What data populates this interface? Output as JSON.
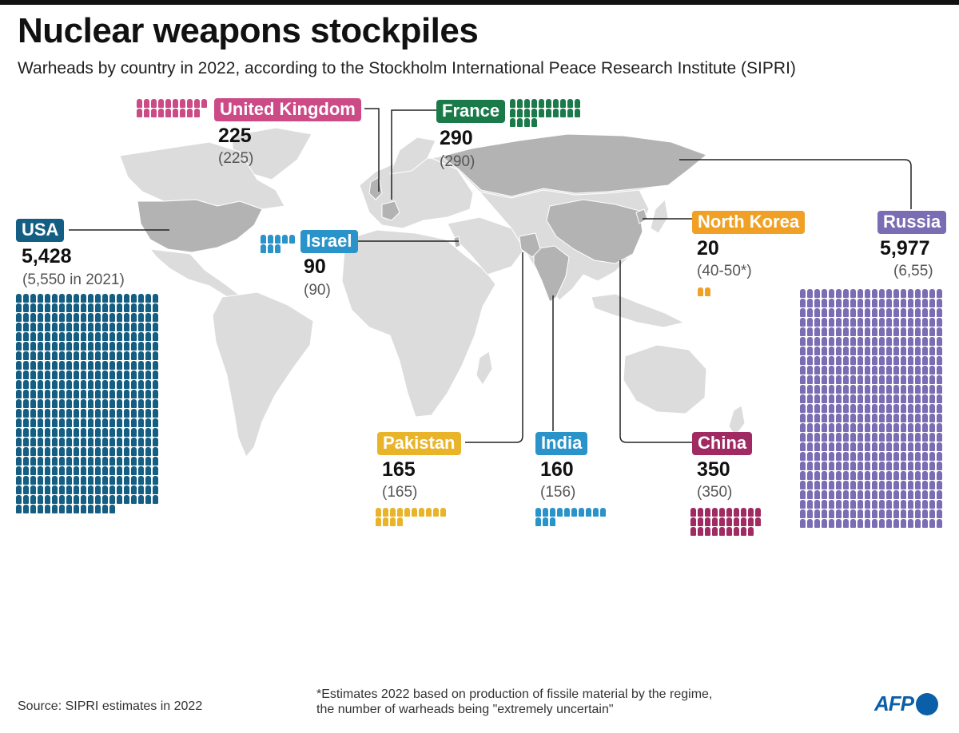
{
  "header": {
    "title": "Nuclear weapons stockpiles",
    "subtitle": "Warheads by country in 2022, according to the Stockholm International Peace Research Institute (SIPRI)"
  },
  "chart_data": {
    "type": "pictogram-map",
    "title": "Nuclear weapons stockpiles",
    "subtitle": "Warheads by country in 2022, according to the Stockholm International Peace Research Institute (SIPRI)",
    "unit": "warheads",
    "countries": [
      {
        "key": "uk",
        "name": "United Kingdom",
        "value": 225,
        "value_label": "225",
        "previous_label": "(225)",
        "color": "#cc4a86",
        "icons": 19
      },
      {
        "key": "france",
        "name": "France",
        "value": 290,
        "value_label": "290",
        "previous_label": "(290)",
        "color": "#1b7a4a",
        "icons": 24
      },
      {
        "key": "usa",
        "name": "USA",
        "value": 5428,
        "value_label": "5,428",
        "previous_label": "(5,550 in 2021)",
        "color": "#135e82",
        "icons": 454
      },
      {
        "key": "israel",
        "name": "Israel",
        "value": 90,
        "value_label": "90",
        "previous_label": "(90)",
        "color": "#2a93c9",
        "icons": 8
      },
      {
        "key": "north_korea",
        "name": "North Korea",
        "value": 20,
        "value_label": "20",
        "previous_label": "(40-50*)",
        "color": "#f0a024",
        "icons": 2
      },
      {
        "key": "russia",
        "name": "Russia",
        "value": 5977,
        "value_label": "5,977",
        "previous_label": "(6,55)",
        "color": "#7b6db3",
        "icons": 500
      },
      {
        "key": "pakistan",
        "name": "Pakistan",
        "value": 165,
        "value_label": "165",
        "previous_label": "(165)",
        "color": "#e9b42a",
        "icons": 14
      },
      {
        "key": "india",
        "name": "India",
        "value": 160,
        "value_label": "160",
        "previous_label": "(156)",
        "color": "#2a93c9",
        "icons": 13
      },
      {
        "key": "china",
        "name": "China",
        "value": 350,
        "value_label": "350",
        "previous_label": "(350)",
        "color": "#a02a62",
        "icons": 29
      }
    ]
  },
  "footer": {
    "source": "Source: SIPRI estimates in 2022",
    "footnote_line1": "*Estimates 2022 based on production of fissile material by the regime,",
    "footnote_line2": "the number of warheads being \"extremely uncertain\"",
    "logo": "AFP"
  }
}
